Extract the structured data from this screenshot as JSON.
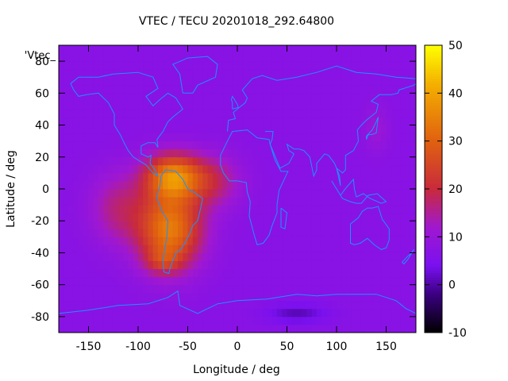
{
  "chart_data": {
    "type": "heatmap",
    "title": "VTEC / TECU 20201018_292.64800",
    "series_label": "'Vtec_",
    "xlabel": "Longitude / deg",
    "ylabel": "Latitude / deg",
    "xlim": [
      -180,
      180
    ],
    "ylim": [
      -90,
      90
    ],
    "xticks": [
      -150,
      -100,
      -50,
      0,
      50,
      100,
      150
    ],
    "yticks": [
      -80,
      -60,
      -40,
      -20,
      0,
      20,
      40,
      60,
      80
    ],
    "colorbar": {
      "range": [
        -10,
        50
      ],
      "ticks": [
        -10,
        0,
        10,
        20,
        30,
        40,
        50
      ],
      "stops": [
        {
          "value": -10,
          "color": "#000000"
        },
        {
          "value": -2,
          "color": "#3a0080"
        },
        {
          "value": 4,
          "color": "#7a10f0"
        },
        {
          "value": 12,
          "color": "#a018d0"
        },
        {
          "value": 20,
          "color": "#c82a3c"
        },
        {
          "value": 30,
          "color": "#e06010"
        },
        {
          "value": 42,
          "color": "#f4b000"
        },
        {
          "value": 50,
          "color": "#ffff00"
        }
      ]
    },
    "background_value": 7,
    "features": [
      {
        "name": "south-america-anomaly",
        "lon": -68,
        "lat": -25,
        "sx": 32,
        "sy": 24,
        "amp": 27
      },
      {
        "name": "central-america-peak",
        "lon": -65,
        "lat": 8,
        "sx": 28,
        "sy": 14,
        "amp": 27
      },
      {
        "name": "atlantic-tongue",
        "lon": -25,
        "lat": 5,
        "sx": 28,
        "sy": 16,
        "amp": 10
      },
      {
        "name": "eastern-pacific-tongue",
        "lon": -120,
        "lat": -12,
        "sx": 28,
        "sy": 22,
        "amp": 9
      },
      {
        "name": "southern-cone",
        "lon": -75,
        "lat": -45,
        "sx": 18,
        "sy": 8,
        "amp": 8
      },
      {
        "name": "north-pacific-patch",
        "lon": 140,
        "lat": 38,
        "sx": 12,
        "sy": 14,
        "amp": 4
      },
      {
        "name": "antarctic-low",
        "lon": 60,
        "lat": -78,
        "sx": 30,
        "sy": 6,
        "amp": -6
      }
    ],
    "coastline_color": "#1e90ff"
  }
}
